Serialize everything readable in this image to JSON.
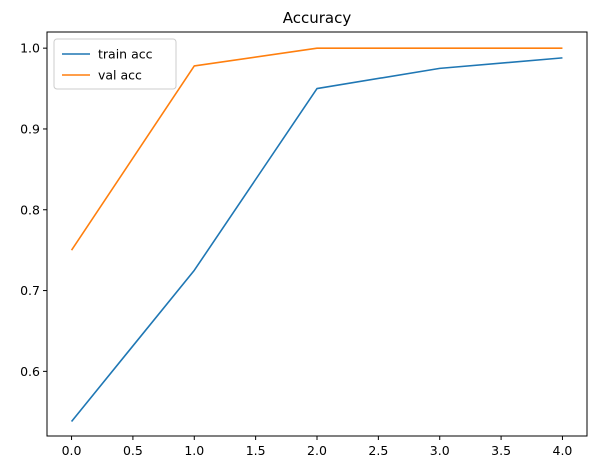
{
  "chart_data": {
    "type": "line",
    "title": "Accuracy",
    "xlabel": "",
    "ylabel": "",
    "xlim": [
      -0.2,
      4.2
    ],
    "ylim": [
      0.52,
      1.02
    ],
    "xticks": [
      "0.0",
      "0.5",
      "1.0",
      "1.5",
      "2.0",
      "2.5",
      "3.0",
      "3.5",
      "4.0"
    ],
    "yticks": [
      "0.6",
      "0.7",
      "0.8",
      "0.9",
      "1.0"
    ],
    "grid": false,
    "legend_position": "top-left",
    "x": [
      0,
      1,
      2,
      3,
      4
    ],
    "series": [
      {
        "name": "train acc",
        "color": "#1f77b4",
        "values": [
          0.538,
          0.725,
          0.95,
          0.975,
          0.988
        ]
      },
      {
        "name": "val acc",
        "color": "#ff7f0e",
        "values": [
          0.75,
          0.978,
          1.0,
          1.0,
          1.0
        ]
      }
    ]
  }
}
